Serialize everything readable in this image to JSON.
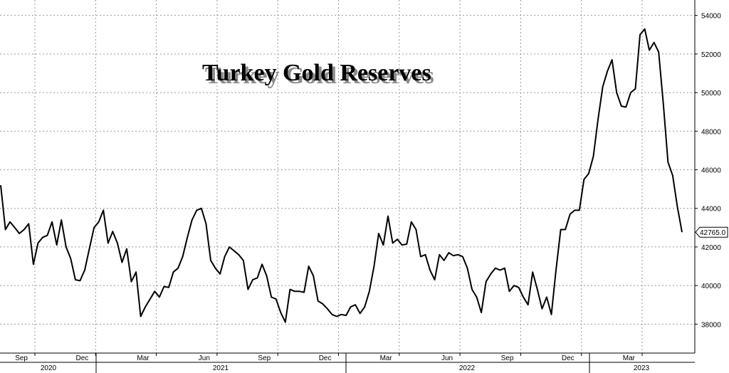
{
  "chart_data": {
    "type": "line",
    "title": "Turkey Gold Reserves",
    "ylim": [
      36500,
      54800
    ],
    "y_ticks": [
      38000,
      40000,
      42000,
      44000,
      46000,
      48000,
      50000,
      52000,
      54000
    ],
    "y_tick_labels": [
      "38000",
      "40000",
      "42000",
      "44000",
      "46000",
      "48000",
      "50000",
      "52000",
      "54000"
    ],
    "x_tick_labels": [
      "Sep",
      "Dec",
      "Mar",
      "Jun",
      "Sep",
      "Dec",
      "Mar",
      "Jun",
      "Sep",
      "Dec",
      "Mar"
    ],
    "year_labels": [
      "2020",
      "2021",
      "2022",
      "2023"
    ],
    "last_value_label": "42765.0",
    "grid": true,
    "series": [
      {
        "values": [
          45200,
          42900,
          43300,
          43000,
          42700,
          42900,
          43200,
          41100,
          42200,
          42500,
          42600,
          43300,
          42100,
          43400,
          42000,
          41400,
          40300,
          40250,
          40800,
          41900,
          43000,
          43300,
          43900,
          42200,
          42800,
          42200,
          41200,
          41900,
          40200,
          40700,
          38400,
          38900,
          39300,
          39700,
          39400,
          39950,
          39900,
          40700,
          40900,
          41500,
          42500,
          43400,
          43900,
          44000,
          43200,
          41300,
          40900,
          40600,
          41500,
          42000,
          41800,
          41600,
          41300,
          39800,
          40300,
          40400,
          41100,
          40500,
          39400,
          39300,
          38600,
          38100,
          39800,
          39700,
          39700,
          39650,
          41000,
          40500,
          39200,
          39050,
          38800,
          38500,
          38400,
          38500,
          38450,
          38900,
          39000,
          38550,
          38900,
          39700,
          41000,
          42700,
          42100,
          43600,
          42200,
          42400,
          42100,
          42150,
          43300,
          42900,
          41500,
          41600,
          40800,
          40300,
          41600,
          41300,
          41700,
          41550,
          41600,
          41500,
          40900,
          39800,
          39400,
          38600,
          40200,
          40600,
          40900,
          40800,
          40900,
          39700,
          40000,
          39900,
          39400,
          39000,
          40700,
          39800,
          38800,
          39400,
          38500,
          40800,
          42900,
          42900,
          43700,
          43900,
          43900,
          45500,
          45800,
          46700,
          48600,
          50300,
          51100,
          51700,
          50000,
          49300,
          49250,
          50000,
          50200,
          53000,
          53300,
          52200,
          52600,
          52100,
          49400,
          46400,
          45700,
          44100,
          42765
        ]
      }
    ]
  }
}
